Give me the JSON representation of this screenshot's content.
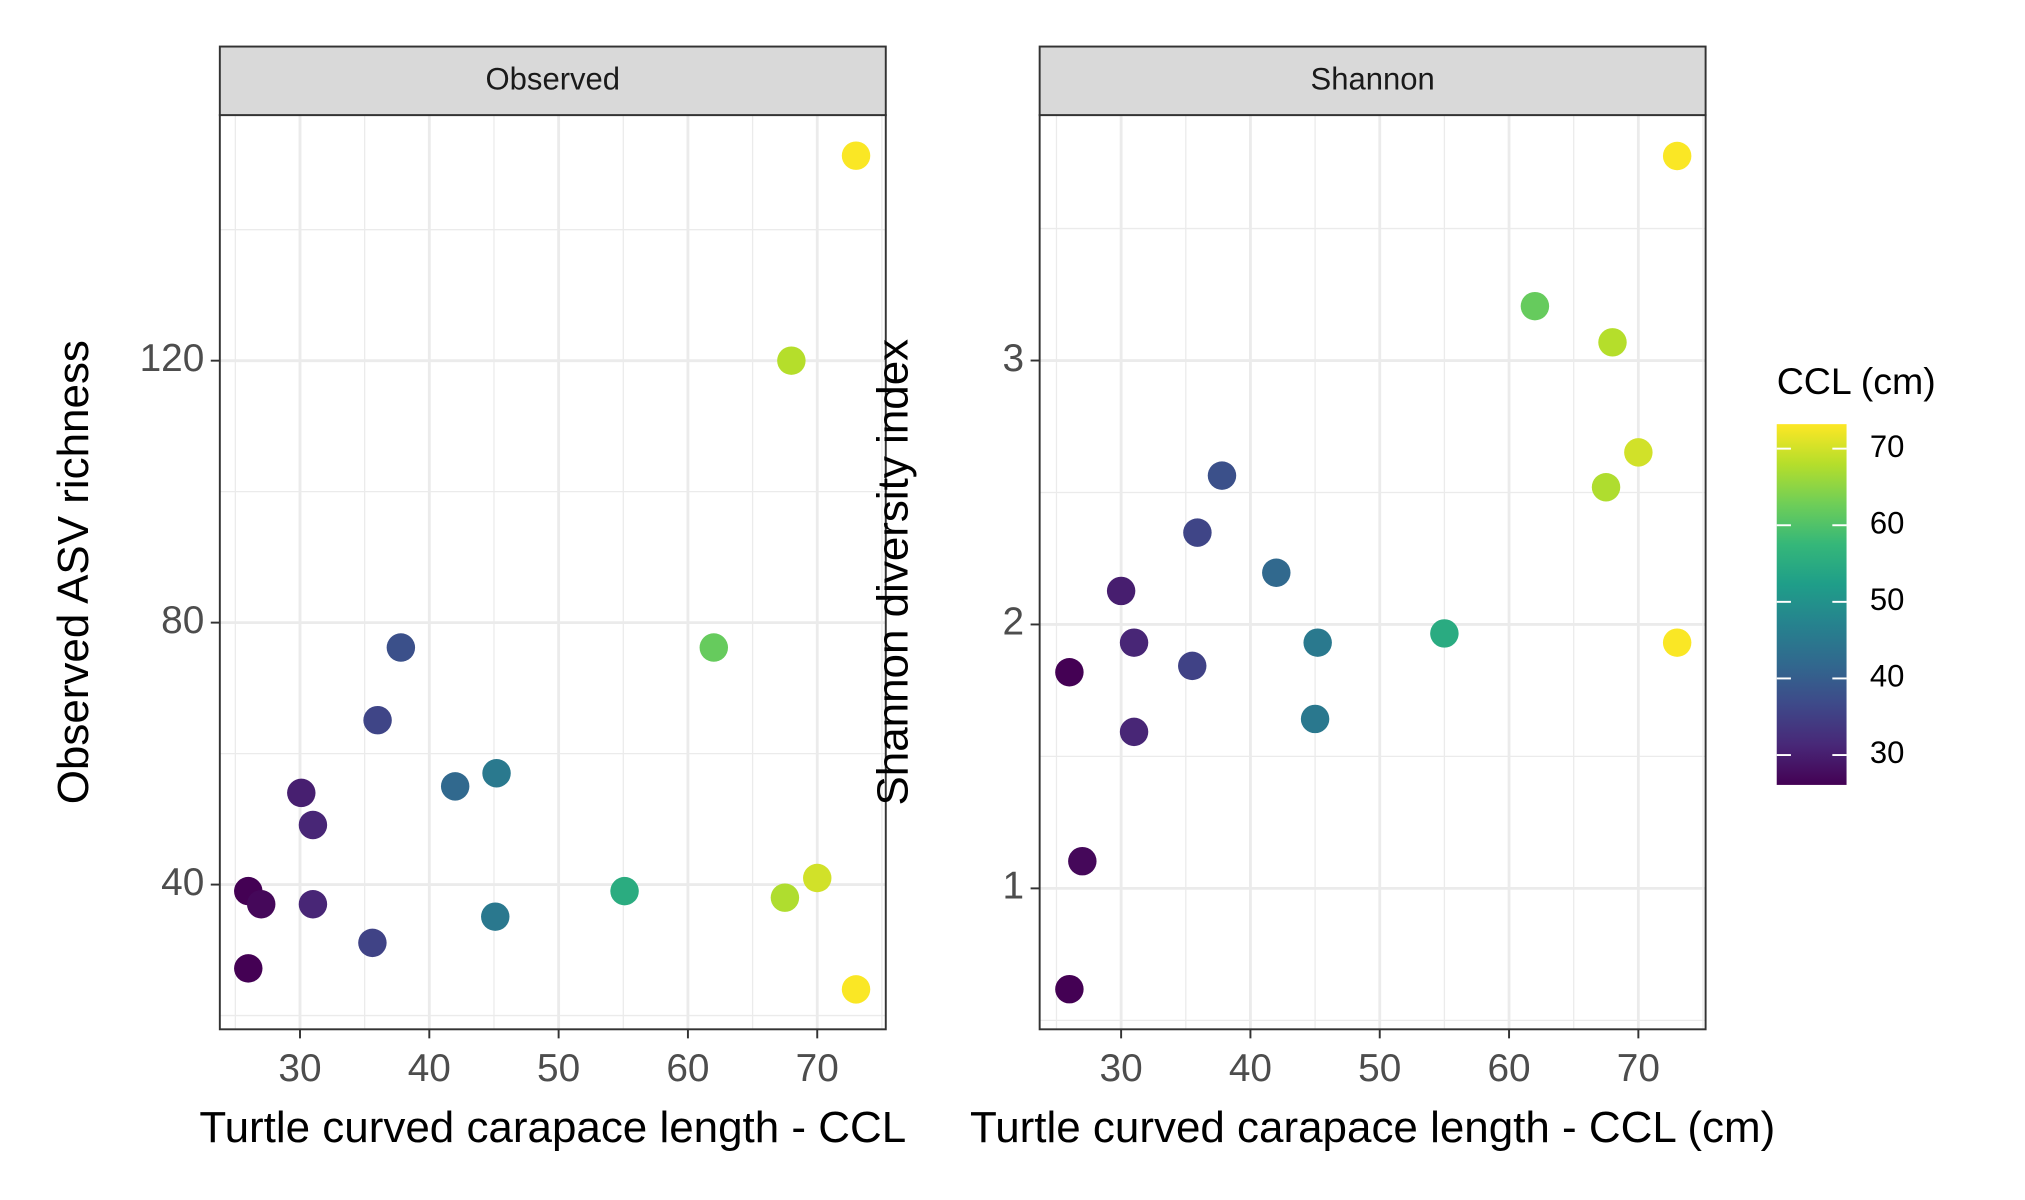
{
  "chart_data": [
    {
      "type": "scatter",
      "title": "Observed",
      "y_label": "Observed ASV richness",
      "x_label": "Turtle curved carapace length - CCL",
      "x": [
        73,
        68,
        62,
        37.8,
        36,
        42,
        45.2,
        30.1,
        31,
        26,
        27,
        31,
        35.6,
        45.1,
        55.1,
        67.5,
        70,
        26,
        73
      ],
      "values": [
        151.3,
        120,
        76.2,
        76.2,
        65.1,
        55,
        57,
        54,
        49.1,
        39,
        37,
        37,
        31.1,
        35.1,
        39,
        38,
        41,
        27.2,
        24
      ],
      "xlim": [
        23.8,
        75.3
      ],
      "ylim": [
        17.9,
        157.5
      ],
      "xticks": [
        30,
        40,
        50,
        60,
        70
      ],
      "yticks": [
        40,
        80,
        120
      ],
      "grid": true
    },
    {
      "type": "scatter",
      "title": "Shannon",
      "y_label": "Shannon diversity index",
      "x_label": "Turtle curved carapace length - CCL (cm)",
      "x": [
        73,
        62,
        68,
        70,
        67.5,
        37.8,
        35.9,
        42,
        30,
        55,
        45.2,
        31,
        73,
        26,
        35.5,
        45,
        31,
        27,
        26
      ],
      "values": [
        3.775,
        3.206,
        3.069,
        2.652,
        2.52,
        2.564,
        2.348,
        2.196,
        2.127,
        1.966,
        1.931,
        1.931,
        1.931,
        1.819,
        1.843,
        1.642,
        1.593,
        1.103,
        0.618
      ],
      "xlim": [
        23.7,
        75.2
      ],
      "ylim": [
        0.466,
        3.93
      ],
      "xticks": [
        30,
        40,
        50,
        60,
        70
      ],
      "yticks": [
        1,
        2,
        3
      ],
      "grid": true
    }
  ],
  "colorbar": {
    "title": "CCL (cm)",
    "lim": [
      26.1,
      73.2
    ],
    "ticks": [
      30,
      40,
      50,
      60,
      70
    ],
    "colorscale": [
      "#440154",
      "#482878",
      "#3e4989",
      "#31688e",
      "#26828e",
      "#1f9e89",
      "#35b779",
      "#6ece58",
      "#b5de2b",
      "#fde725"
    ]
  }
}
